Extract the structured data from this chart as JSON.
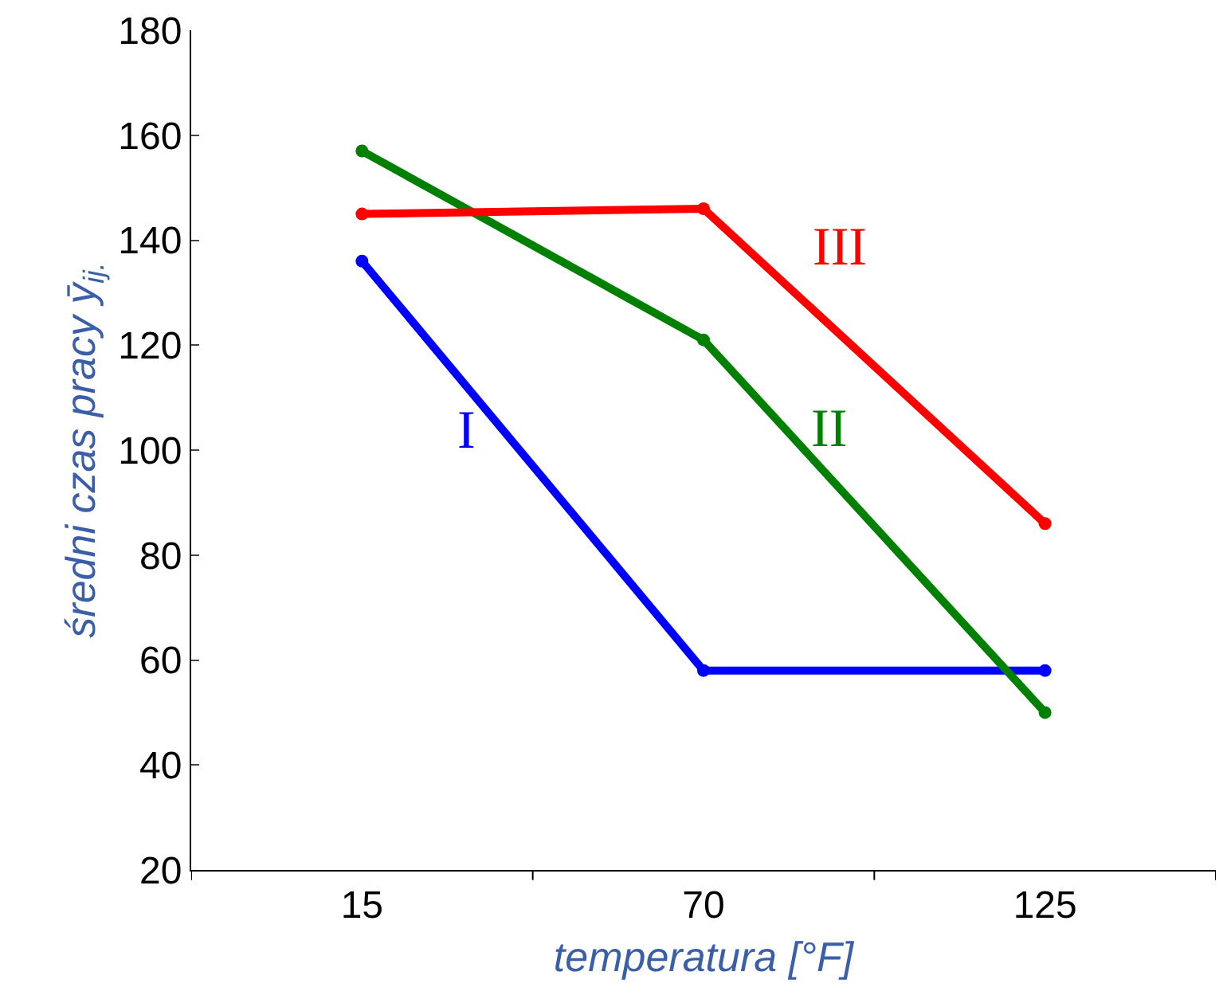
{
  "chart_data": {
    "type": "line",
    "xlabel": "temperatura [°F]",
    "ylabel": "średni czas pracy ȳ$_{ij.}$",
    "categories": [
      "15",
      "70",
      "125"
    ],
    "series": [
      {
        "name": "I",
        "color": "#0000ff",
        "values": [
          136,
          58,
          58
        ]
      },
      {
        "name": "II",
        "color": "#008000",
        "values": [
          157,
          121,
          50
        ]
      },
      {
        "name": "III",
        "color": "#ff0000",
        "values": [
          145,
          146,
          86
        ]
      }
    ],
    "ylim": [
      20,
      180
    ],
    "yticks": [
      20,
      40,
      60,
      80,
      100,
      120,
      140,
      160,
      180
    ],
    "grid": false,
    "legend": false,
    "marker": "circle",
    "line_style": "solid"
  }
}
